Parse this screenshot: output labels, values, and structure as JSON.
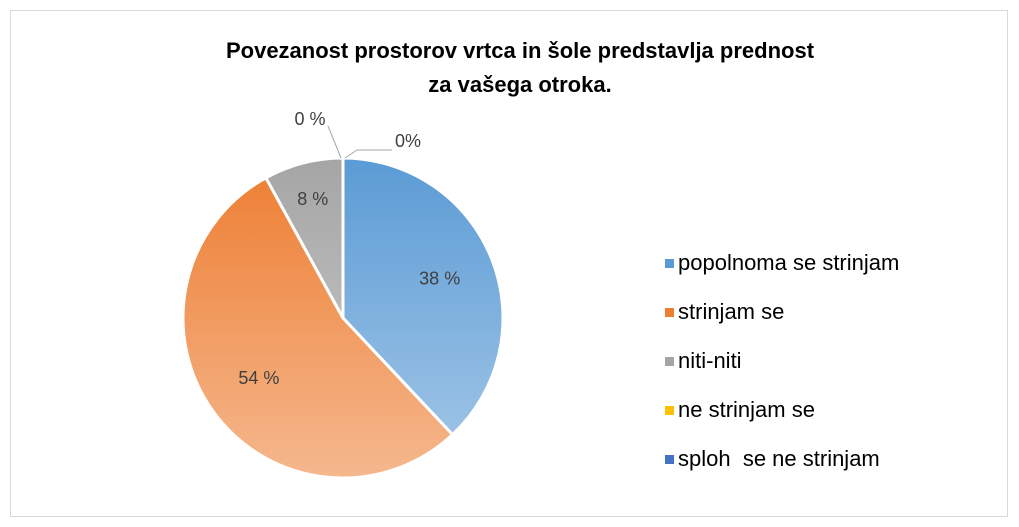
{
  "chart_data": {
    "type": "pie",
    "title": [
      "Povezanost prostorov vrtca in šole predstavlja prednost",
      "za vašega otroka."
    ],
    "categories": [
      "popolnoma se strinjam",
      "strinjam se",
      "niti-niti",
      "ne strinjam se",
      "sploh  se ne strinjam"
    ],
    "values": [
      38,
      54,
      8,
      0,
      0
    ],
    "value_labels": [
      "38 %",
      "54 %",
      "8 %",
      "0 %",
      "0%"
    ],
    "colors": [
      "#5b9bd5",
      "#ed7d31",
      "#a5a5a5",
      "#ffc000",
      "#4472c4"
    ],
    "legend": "right"
  }
}
